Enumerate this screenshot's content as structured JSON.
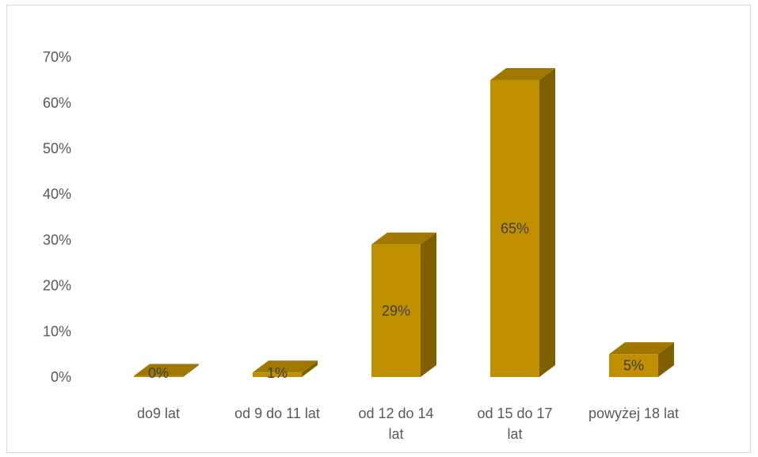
{
  "chart_data": {
    "type": "bar",
    "title": "",
    "xlabel": "",
    "ylabel": "",
    "categories": [
      [
        "do9 lat"
      ],
      [
        "od 9 do 11 lat"
      ],
      [
        "od 12 do 14",
        "lat"
      ],
      [
        "od 15 do 17",
        "lat"
      ],
      [
        "powyżej 18 lat"
      ]
    ],
    "values": [
      0.25,
      1,
      29,
      65,
      5
    ],
    "data_labels": [
      "0%",
      "1%",
      "29%",
      "65%",
      "5%"
    ],
    "y_ticks": [
      "0%",
      "10%",
      "20%",
      "30%",
      "40%",
      "50%",
      "60%",
      "70%"
    ],
    "ylim": [
      0,
      70
    ],
    "grid": false,
    "legend": "none",
    "style": "3d-column",
    "colors": {
      "front": "#bf8f00",
      "side": "#7f6000",
      "top": "#a07800"
    }
  }
}
